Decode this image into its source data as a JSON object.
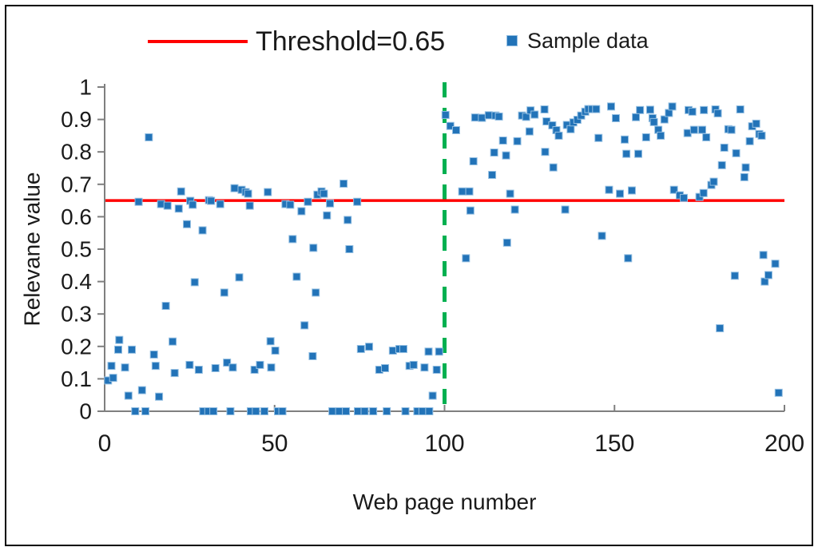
{
  "legend": {
    "threshold_label": "Threshold=0.65",
    "series_label": "Sample data"
  },
  "axes": {
    "y_title": "Relevane value",
    "x_title": "Web page number",
    "y_tick_labels": [
      "1",
      "0.9",
      "0.8",
      "0.7",
      "0.6",
      "0.5",
      "0.4",
      "0.3",
      "0.2",
      "0.1",
      "0"
    ],
    "x_tick_labels": [
      "0",
      "50",
      "100",
      "150",
      "200"
    ],
    "x_tick_values": [
      0,
      50,
      100,
      150,
      200
    ]
  },
  "colors": {
    "marker_fill": "#2273b8",
    "marker_border": "#94bfe2",
    "threshold_line": "#ff0000",
    "divider_line": "#00b050",
    "axis_line": "#7f7f7f",
    "text": "#1a1a1a",
    "figure_border": "#000000",
    "background": "#ffffff"
  },
  "chart_data": {
    "type": "scatter",
    "title": "",
    "xlabel": "Web page number",
    "ylabel": "Relevane value",
    "xlim": [
      0,
      200
    ],
    "ylim": [
      0,
      1
    ],
    "grid": false,
    "legend_position": "top",
    "threshold": {
      "label": "Threshold=0.65",
      "value": 0.65,
      "color": "#ff0000",
      "style": "solid"
    },
    "divider": {
      "x": 100,
      "color": "#00b050",
      "style": "dashed"
    },
    "series": [
      {
        "name": "Sample data",
        "marker": "square",
        "color": "#2273b8",
        "points": [
          [
            1,
            0.095
          ],
          [
            2,
            0.14
          ],
          [
            2.5,
            0.103
          ],
          [
            4,
            0.19
          ],
          [
            4.3,
            0.22
          ],
          [
            6,
            0.135
          ],
          [
            7,
            0.048
          ],
          [
            8,
            0.19
          ],
          [
            9,
            0
          ],
          [
            10,
            0.646
          ],
          [
            11,
            0.065
          ],
          [
            12,
            0
          ],
          [
            13,
            0.845
          ],
          [
            14.5,
            0.175
          ],
          [
            15,
            0.14
          ],
          [
            16,
            0.045
          ],
          [
            16.6,
            0.639
          ],
          [
            18,
            0.325
          ],
          [
            18.5,
            0.634
          ],
          [
            20,
            0.215
          ],
          [
            20.6,
            0.118
          ],
          [
            21.8,
            0.625
          ],
          [
            22.5,
            0.678
          ],
          [
            24.2,
            0.577
          ],
          [
            25,
            0.143
          ],
          [
            25.2,
            0.649
          ],
          [
            25.9,
            0.637
          ],
          [
            26.5,
            0.398
          ],
          [
            27.7,
            0.128
          ],
          [
            28.8,
            0.558
          ],
          [
            29,
            0
          ],
          [
            30.5,
            0
          ],
          [
            30.7,
            0.651
          ],
          [
            31.3,
            0.649
          ],
          [
            32,
            0
          ],
          [
            32.6,
            0.133
          ],
          [
            34,
            0.639
          ],
          [
            35.2,
            0.366
          ],
          [
            36,
            0.15
          ],
          [
            37,
            0
          ],
          [
            37.7,
            0.135
          ],
          [
            38.2,
            0.688
          ],
          [
            39.6,
            0.413
          ],
          [
            40.3,
            0.683
          ],
          [
            41.5,
            0.676
          ],
          [
            42.2,
            0.671
          ],
          [
            42.7,
            0.634
          ],
          [
            43,
            0
          ],
          [
            44.1,
            0.128
          ],
          [
            44.5,
            0
          ],
          [
            45.7,
            0.143
          ],
          [
            47,
            0
          ],
          [
            48,
            0.676
          ],
          [
            48.8,
            0.216
          ],
          [
            49,
            0.135
          ],
          [
            50.2,
            0.187
          ],
          [
            51,
            0
          ],
          [
            52.3,
            0
          ],
          [
            53.2,
            0.639
          ],
          [
            54.6,
            0.637
          ],
          [
            55.3,
            0.531
          ],
          [
            56.5,
            0.415
          ],
          [
            57.9,
            0.617
          ],
          [
            58.8,
            0.265
          ],
          [
            59.8,
            0.646
          ],
          [
            61.2,
            0.17
          ],
          [
            61.4,
            0.504
          ],
          [
            62.1,
            0.366
          ],
          [
            62.6,
            0.668
          ],
          [
            63.8,
            0.678
          ],
          [
            64.5,
            0.671
          ],
          [
            65.4,
            0.604
          ],
          [
            66.3,
            0.641
          ],
          [
            67,
            0
          ],
          [
            69,
            0
          ],
          [
            70.3,
            0.702
          ],
          [
            71,
            0
          ],
          [
            71.5,
            0.59
          ],
          [
            72,
            0.5
          ],
          [
            74.3,
            0.646
          ],
          [
            74.5,
            0
          ],
          [
            75.4,
            0.192
          ],
          [
            76.5,
            0
          ],
          [
            77.8,
            0.199
          ],
          [
            79,
            0
          ],
          [
            80.8,
            0.128
          ],
          [
            82.5,
            0.133
          ],
          [
            83,
            0
          ],
          [
            84.8,
            0.187
          ],
          [
            86.7,
            0.192
          ],
          [
            87.9,
            0.192
          ],
          [
            88.5,
            0
          ],
          [
            89.7,
            0.14
          ],
          [
            90.9,
            0.143
          ],
          [
            92,
            0
          ],
          [
            93.5,
            0
          ],
          [
            94.1,
            0.135
          ],
          [
            95.3,
            0.184
          ],
          [
            95.5,
            0
          ],
          [
            96.5,
            0.048
          ],
          [
            97.7,
            0.128
          ],
          [
            98.4,
            0.184
          ],
          [
            100.3,
            0.914
          ],
          [
            101.7,
            0.88
          ],
          [
            103.4,
            0.867
          ],
          [
            105.2,
            0.678
          ],
          [
            106.3,
            0.472
          ],
          [
            107.3,
            0.678
          ],
          [
            107.6,
            0.619
          ],
          [
            108.5,
            0.771
          ],
          [
            109,
            0.906
          ],
          [
            111,
            0.905
          ],
          [
            113,
            0.913
          ],
          [
            114,
            0.729
          ],
          [
            114.6,
            0.798
          ],
          [
            115,
            0.912
          ],
          [
            116,
            0.909
          ],
          [
            117.2,
            0.835
          ],
          [
            118.1,
            0.789
          ],
          [
            118.4,
            0.52
          ],
          [
            119.3,
            0.671
          ],
          [
            120.7,
            0.622
          ],
          [
            121.4,
            0.833
          ],
          [
            122.8,
            0.912
          ],
          [
            124,
            0.908
          ],
          [
            125,
            0.863
          ],
          [
            125.3,
            0.928
          ],
          [
            126.5,
            0.915
          ],
          [
            129.4,
            0.931
          ],
          [
            129.6,
            0.8
          ],
          [
            130,
            0.894
          ],
          [
            131.7,
            0.882
          ],
          [
            132,
            0.752
          ],
          [
            132.9,
            0.867
          ],
          [
            133.6,
            0.85
          ],
          [
            135.5,
            0.622
          ],
          [
            136,
            0.883
          ],
          [
            137.1,
            0.87
          ],
          [
            137.9,
            0.891
          ],
          [
            139.1,
            0.899
          ],
          [
            140.2,
            0.912
          ],
          [
            141.4,
            0.924
          ],
          [
            142.3,
            0.932
          ],
          [
            143.4,
            0.932
          ],
          [
            144.6,
            0.932
          ],
          [
            145.3,
            0.843
          ],
          [
            146.3,
            0.541
          ],
          [
            148.4,
            0.683
          ],
          [
            149,
            0.94
          ],
          [
            150.4,
            0.904
          ],
          [
            151.6,
            0.671
          ],
          [
            153,
            0.838
          ],
          [
            153.5,
            0.794
          ],
          [
            154,
            0.472
          ],
          [
            155.1,
            0.681
          ],
          [
            156.3,
            0.907
          ],
          [
            157,
            0.794
          ],
          [
            157.5,
            0.929
          ],
          [
            159.3,
            0.845
          ],
          [
            160.5,
            0.93
          ],
          [
            161.2,
            0.904
          ],
          [
            161.6,
            0.892
          ],
          [
            162.9,
            0.868
          ],
          [
            163.6,
            0.85
          ],
          [
            164.7,
            0.9
          ],
          [
            166,
            0.92
          ],
          [
            167,
            0.94
          ],
          [
            167.5,
            0.683
          ],
          [
            169.2,
            0.666
          ],
          [
            170.4,
            0.658
          ],
          [
            171.5,
            0.858
          ],
          [
            171.8,
            0.929
          ],
          [
            172.9,
            0.924
          ],
          [
            173.4,
            0.868
          ],
          [
            175,
            0.661
          ],
          [
            175.8,
            0.868
          ],
          [
            176.2,
            0.673
          ],
          [
            176.3,
            0.929
          ],
          [
            177,
            0.845
          ],
          [
            178.5,
            0.698
          ],
          [
            179.2,
            0.708
          ],
          [
            179.7,
            0.931
          ],
          [
            180.4,
            0.919
          ],
          [
            181,
            0.256
          ],
          [
            181.6,
            0.759
          ],
          [
            182.3,
            0.813
          ],
          [
            183.5,
            0.87
          ],
          [
            184.4,
            0.868
          ],
          [
            185.4,
            0.418
          ],
          [
            185.8,
            0.796
          ],
          [
            187,
            0.931
          ],
          [
            188.2,
            0.722
          ],
          [
            188.6,
            0.752
          ],
          [
            189.8,
            0.833
          ],
          [
            190.5,
            0.879
          ],
          [
            191.7,
            0.887
          ],
          [
            192.6,
            0.855
          ],
          [
            193.3,
            0.85
          ],
          [
            193.8,
            0.482
          ],
          [
            194.2,
            0.4
          ],
          [
            195.3,
            0.42
          ],
          [
            197.3,
            0.455
          ],
          [
            198.3,
            0.057
          ]
        ]
      }
    ]
  }
}
